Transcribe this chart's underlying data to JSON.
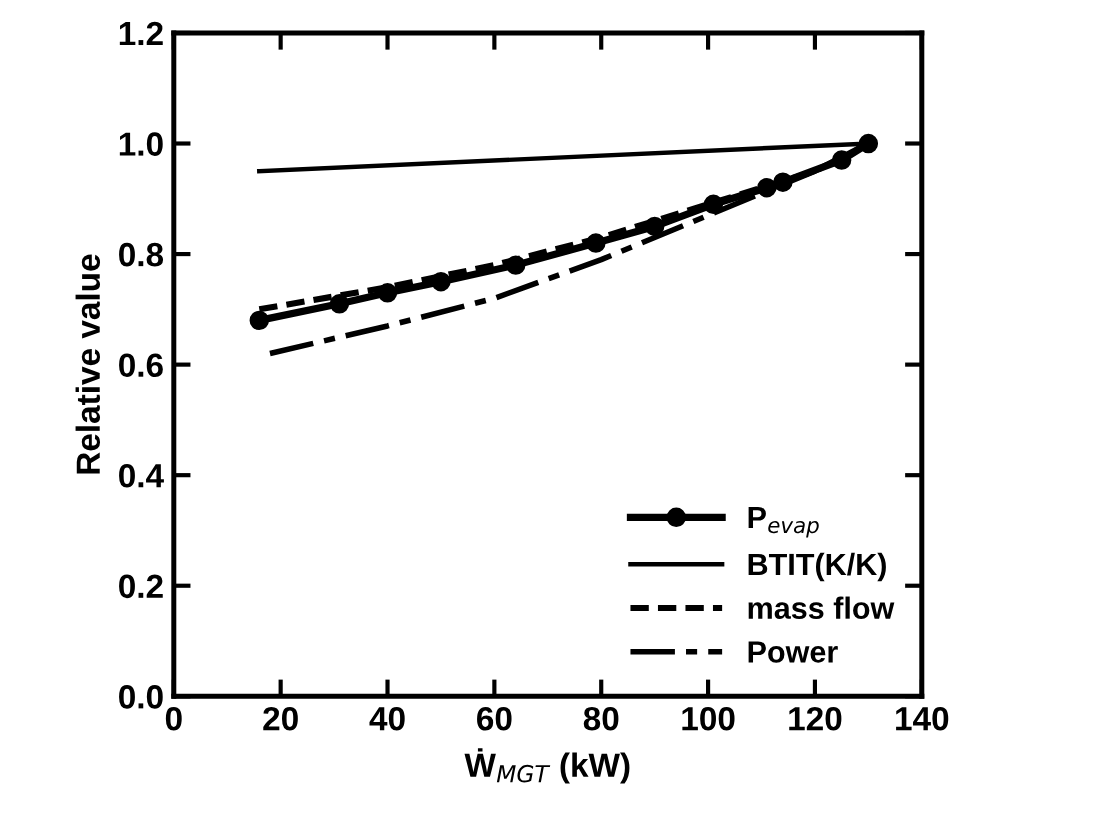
{
  "chart_data": {
    "type": "line",
    "xlabel": "Ẇ$_{MGT}$ (kW)",
    "ylabel": "Relative value",
    "xlim": [
      0,
      140
    ],
    "ylim": [
      0,
      1.2
    ],
    "xticks": [
      0,
      20,
      40,
      60,
      80,
      100,
      120,
      140
    ],
    "yticks": [
      {
        "value": 0,
        "label": "0.0"
      },
      0.2,
      0.4,
      0.6,
      0.8,
      {
        "value": 1,
        "label": "1.0"
      },
      1.2
    ],
    "legend": "bottom right",
    "grid": false,
    "series": [
      {
        "name": "P$_{evap}$",
        "color": "#000000",
        "marker": "circle",
        "line_style": "solid",
        "x": [
          16,
          31,
          40,
          50,
          64,
          79,
          90,
          101,
          111,
          114,
          125,
          130
        ],
        "values": [
          0.68,
          0.71,
          0.73,
          0.75,
          0.78,
          0.82,
          0.85,
          0.89,
          0.92,
          0.93,
          0.97,
          1.0
        ]
      },
      {
        "name": "BTIT(K/K)",
        "color": "#000000",
        "marker": "none",
        "line_style": "solid",
        "x": [
          16,
          130
        ],
        "values": [
          0.95,
          1.0
        ]
      },
      {
        "name": "mass flow",
        "color": "#000000",
        "marker": "none",
        "line_style": "dashed",
        "x": [
          16,
          40,
          60,
          80,
          100,
          120,
          130
        ],
        "values": [
          0.7,
          0.74,
          0.78,
          0.83,
          0.89,
          0.95,
          1.0
        ]
      },
      {
        "name": "Power",
        "color": "#000000",
        "marker": "none",
        "line_style": "dashdot",
        "x": [
          18,
          40,
          60,
          80,
          100,
          120,
          130
        ],
        "values": [
          0.62,
          0.67,
          0.72,
          0.79,
          0.87,
          0.95,
          1.0
        ]
      }
    ]
  }
}
